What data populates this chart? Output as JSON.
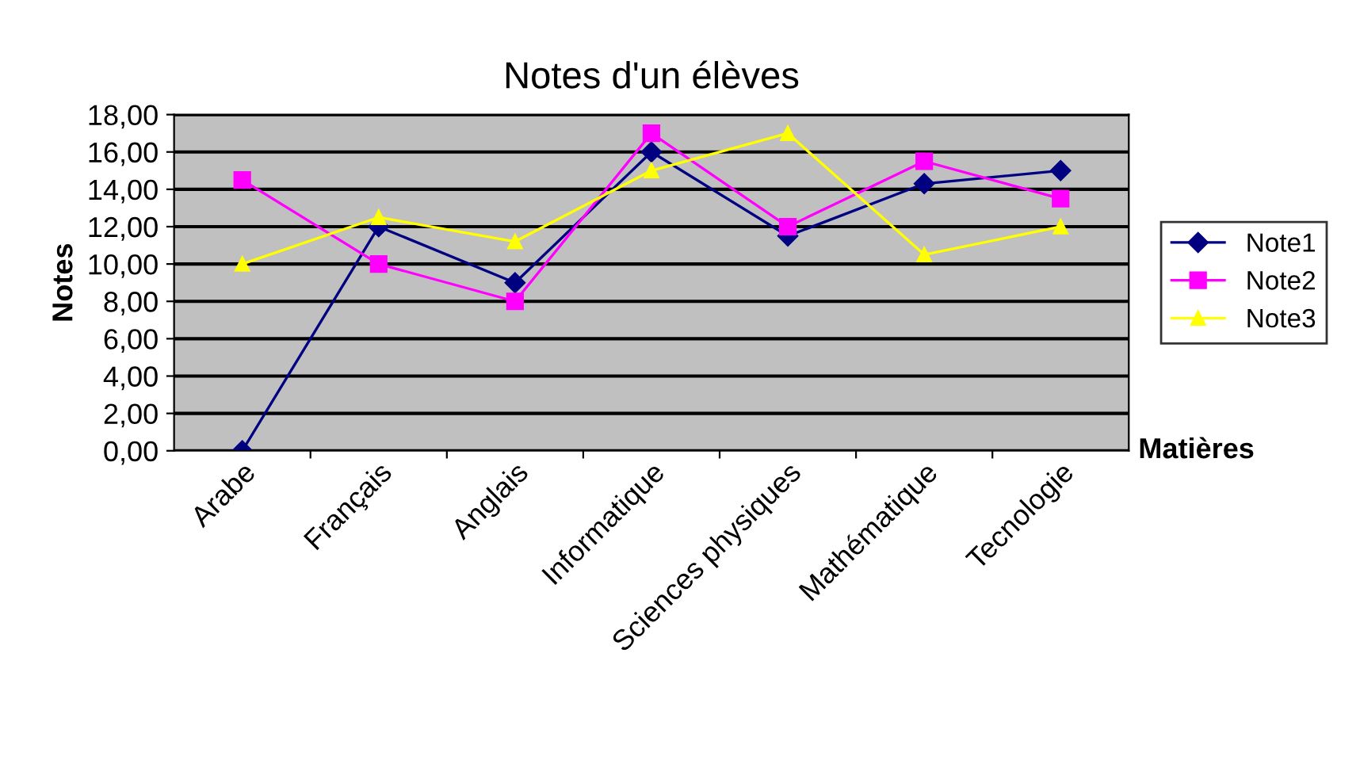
{
  "chart_data": {
    "type": "line",
    "title": "Notes d'un élèves",
    "xlabel": "Matières",
    "ylabel": "Notes",
    "categories": [
      "Arabe",
      "Français",
      "Anglais",
      "Informatique",
      "Sciences physiques",
      "Mathématique",
      "Tecnologie"
    ],
    "series": [
      {
        "name": "Note1",
        "color": "#000080",
        "marker": "diamond",
        "values": [
          0,
          12,
          9,
          16,
          11.5,
          14.3,
          15
        ]
      },
      {
        "name": "Note2",
        "color": "#ff00ff",
        "marker": "square",
        "values": [
          14.5,
          10,
          8,
          17,
          12,
          15.5,
          13.5
        ]
      },
      {
        "name": "Note3",
        "color": "#ffff00",
        "marker": "triangle",
        "values": [
          10,
          12.5,
          11.2,
          15,
          17,
          10.5,
          12
        ]
      }
    ],
    "ylim": [
      0,
      18
    ],
    "yticks": [
      {
        "value": 0,
        "label": "0,00"
      },
      {
        "value": 2,
        "label": "2,00"
      },
      {
        "value": 4,
        "label": "4,00"
      },
      {
        "value": 6,
        "label": "6,00"
      },
      {
        "value": 8,
        "label": "8,00"
      },
      {
        "value": 10,
        "label": "10,00"
      },
      {
        "value": 12,
        "label": "12,00"
      },
      {
        "value": 14,
        "label": "14,00"
      },
      {
        "value": 16,
        "label": "16,00"
      },
      {
        "value": 18,
        "label": "18,00"
      }
    ],
    "grid": "y",
    "legend": "right",
    "line_style": "solid"
  }
}
